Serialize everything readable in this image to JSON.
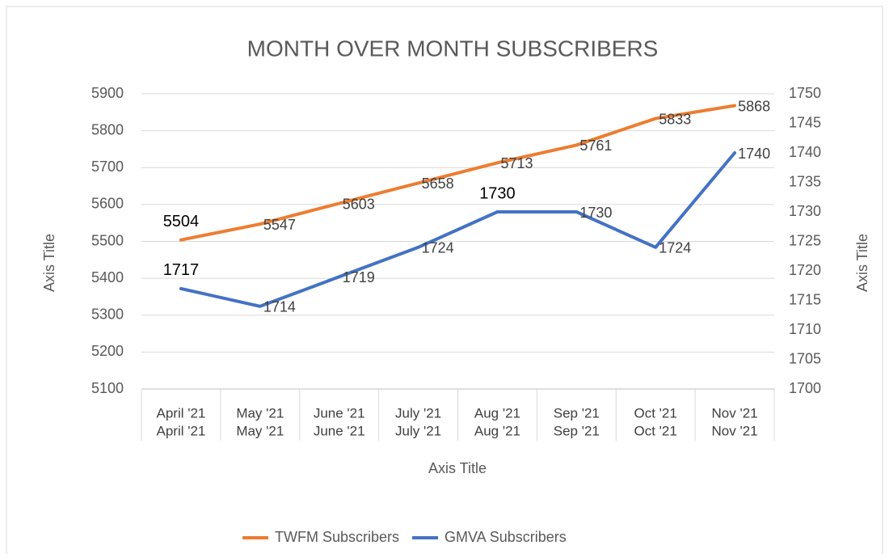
{
  "chart_data": {
    "type": "line",
    "title": "MONTH OVER MONTH SUBSCRIBERS",
    "x_label": "Axis Title",
    "y_label": "Axis Title",
    "y2_label": "Axis Title",
    "categories": [
      "April '21",
      "May '21",
      "June '21",
      "July '21",
      "Aug '21",
      "Sep '21",
      "Oct '21",
      "Nov '21"
    ],
    "categories_outer": [
      "April '21",
      "May '21",
      "June '21",
      "July '21",
      "Aug '21",
      "Sep '21",
      "Oct '21",
      "Nov '21"
    ],
    "ylim": [
      5100,
      5900
    ],
    "yticks": [
      5100,
      5200,
      5300,
      5400,
      5500,
      5600,
      5700,
      5800,
      5900
    ],
    "y2lim": [
      1700,
      1750
    ],
    "y2ticks": [
      1700,
      1705,
      1710,
      1715,
      1720,
      1725,
      1730,
      1735,
      1740,
      1745,
      1750
    ],
    "grid": true,
    "legend": "bottom",
    "series": [
      {
        "name": "TWFM Subscribers",
        "color": "#ED7D31",
        "values": [
          5504,
          5547,
          5603,
          5658,
          5713,
          5761,
          5833,
          5868
        ]
      },
      {
        "name": "GMVA Subscribers",
        "color": "#4472C4",
        "axis": "y2",
        "values": [
          1717,
          1714,
          1719,
          1724,
          1730,
          1730,
          1724,
          1740
        ]
      }
    ]
  }
}
